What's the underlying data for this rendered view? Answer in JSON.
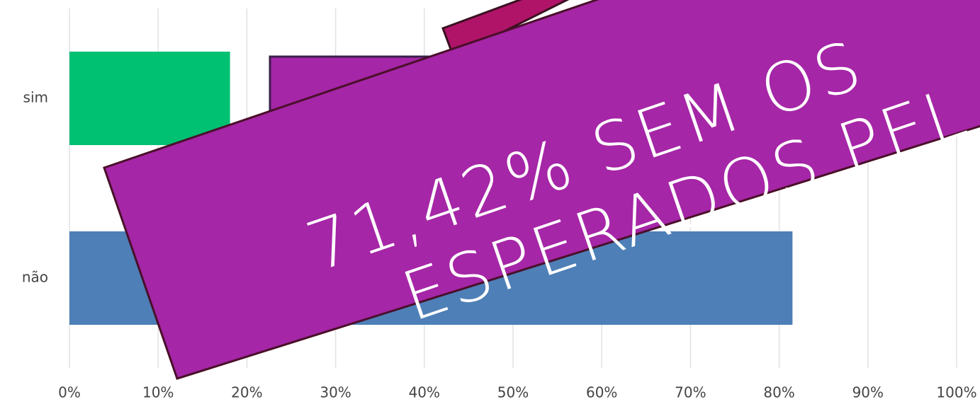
{
  "chart_data": {
    "type": "hbar",
    "categories": [
      "sim",
      "não"
    ],
    "values": [
      18.1,
      81.5
    ],
    "colors": [
      "#00c072",
      "#4e7fb7"
    ],
    "xlim": [
      0,
      100
    ],
    "xticks": [
      {
        "value": 0,
        "label": "0%"
      },
      {
        "value": 10,
        "label": "10%"
      },
      {
        "value": 20,
        "label": "20%"
      },
      {
        "value": 30,
        "label": "30%"
      },
      {
        "value": 40,
        "label": "40%"
      },
      {
        "value": 50,
        "label": "50%"
      },
      {
        "value": 60,
        "label": "60%"
      },
      {
        "value": 70,
        "label": "70%"
      },
      {
        "value": 80,
        "label": "80%"
      },
      {
        "value": 90,
        "label": "90%"
      },
      {
        "value": 100,
        "label": "100%"
      }
    ],
    "grid": true,
    "annotations": [
      "71,42% SEM OS",
      "ESPERADOS PEL"
    ]
  }
}
